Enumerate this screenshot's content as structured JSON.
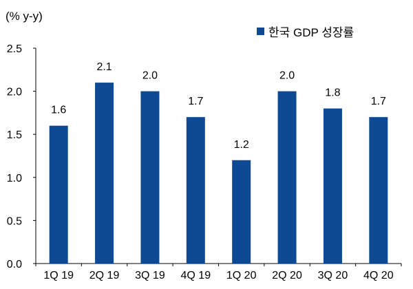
{
  "chart_data": {
    "type": "bar",
    "unit_label": "(% y-y)",
    "categories": [
      "1Q 19",
      "2Q 19",
      "3Q 19",
      "4Q 19",
      "1Q 20",
      "2Q 20",
      "3Q 20",
      "4Q 20"
    ],
    "series": [
      {
        "name": "한국 GDP 성장률",
        "values": [
          1.6,
          2.1,
          2.0,
          1.7,
          1.2,
          2.0,
          1.8,
          1.7
        ],
        "labels": [
          "1.6",
          "2.1",
          "2.0",
          "1.7",
          "1.2",
          "2.0",
          "1.8",
          "1.7"
        ],
        "color": "#0e4a93"
      }
    ],
    "ylim": [
      0,
      2.5
    ],
    "yticks": [
      "0.0",
      "0.5",
      "1.0",
      "1.5",
      "2.0",
      "2.5"
    ],
    "grid": false,
    "legend_position": "top-right"
  }
}
